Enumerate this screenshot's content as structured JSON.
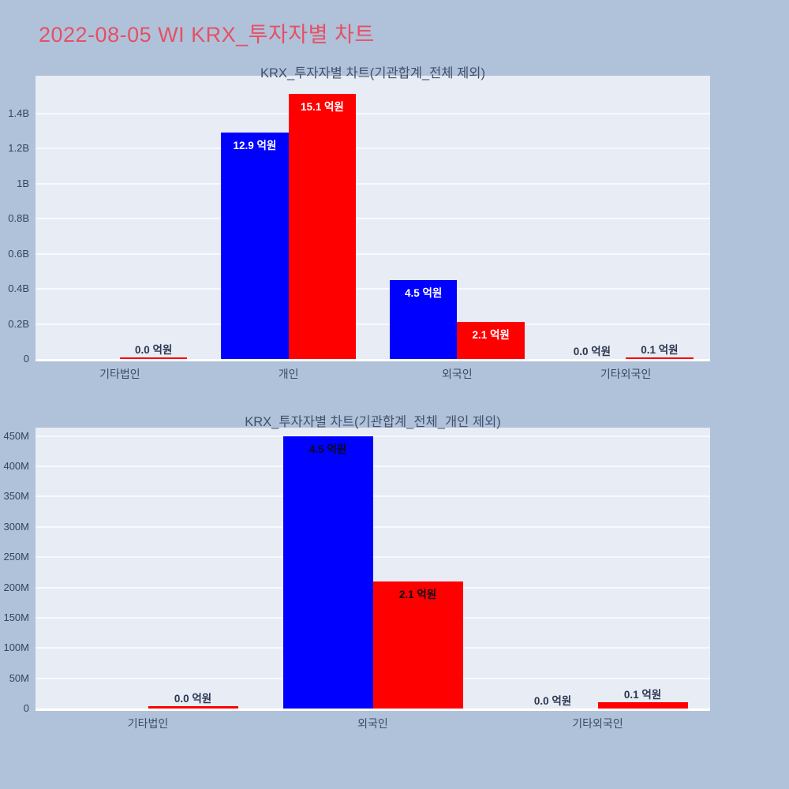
{
  "page": {
    "title": "2022-08-05 WI KRX_투자자별 차트",
    "title_color": "#e65064",
    "background_color": "#b0c2da",
    "panel_color": "#e8ecf5"
  },
  "chart_data": [
    {
      "type": "bar",
      "title": "KRX_투자자별 차트(기관합계_전체 제외)",
      "unit": "억원",
      "categories": [
        "기타법인",
        "개인",
        "외국인",
        "기타외국인"
      ],
      "series": [
        {
          "name": "series-blue",
          "color": "#0000ff",
          "values": [
            null,
            12.9,
            4.5,
            0.0
          ],
          "labels": [
            null,
            "12.9 억원",
            "4.5 억원",
            "0.0 억원"
          ]
        },
        {
          "name": "series-red",
          "color": "#ff0000",
          "values": [
            0.0,
            15.1,
            2.1,
            0.1
          ],
          "labels": [
            "0.0 억원",
            "15.1 억원",
            "2.1 억원",
            "0.1 억원"
          ]
        }
      ],
      "y_axis": {
        "max_value": 16.15,
        "ticks": [
          {
            "v": 0,
            "label": "0"
          },
          {
            "v": 2,
            "label": "0.2B"
          },
          {
            "v": 4,
            "label": "0.4B"
          },
          {
            "v": 6,
            "label": "0.6B"
          },
          {
            "v": 8,
            "label": "0.8B"
          },
          {
            "v": 10,
            "label": "1B"
          },
          {
            "v": 12,
            "label": "1.2B"
          },
          {
            "v": 14,
            "label": "1.4B"
          }
        ]
      },
      "grid": true,
      "legend": "none",
      "inside_label_color": "#ffffff",
      "outside_label_color": "#2b3650"
    },
    {
      "type": "bar",
      "title": "KRX_투자자별 차트(기관합계_전체_개인 제외)",
      "unit": "억원",
      "categories": [
        "기타법인",
        "외국인",
        "기타외국인"
      ],
      "series": [
        {
          "name": "series-blue",
          "color": "#0000ff",
          "values": [
            null,
            4.5,
            0.0
          ],
          "labels": [
            null,
            "4.5 억원",
            "0.0 억원"
          ]
        },
        {
          "name": "series-red",
          "color": "#ff0000",
          "values": [
            0.0,
            2.1,
            0.1
          ],
          "labels": [
            "0.0 억원",
            "2.1 억원",
            "0.1 억원"
          ]
        }
      ],
      "y_axis": {
        "max_value": 4.64,
        "ticks": [
          {
            "v": 0,
            "label": "0"
          },
          {
            "v": 0.5,
            "label": "50M"
          },
          {
            "v": 1,
            "label": "100M"
          },
          {
            "v": 1.5,
            "label": "150M"
          },
          {
            "v": 2,
            "label": "200M"
          },
          {
            "v": 2.5,
            "label": "250M"
          },
          {
            "v": 3,
            "label": "300M"
          },
          {
            "v": 3.5,
            "label": "350M"
          },
          {
            "v": 4,
            "label": "400M"
          },
          {
            "v": 4.5,
            "label": "450M"
          }
        ]
      },
      "grid": true,
      "legend": "none",
      "inside_label_color": "#0c0c16",
      "outside_label_color": "#2b3650"
    }
  ]
}
